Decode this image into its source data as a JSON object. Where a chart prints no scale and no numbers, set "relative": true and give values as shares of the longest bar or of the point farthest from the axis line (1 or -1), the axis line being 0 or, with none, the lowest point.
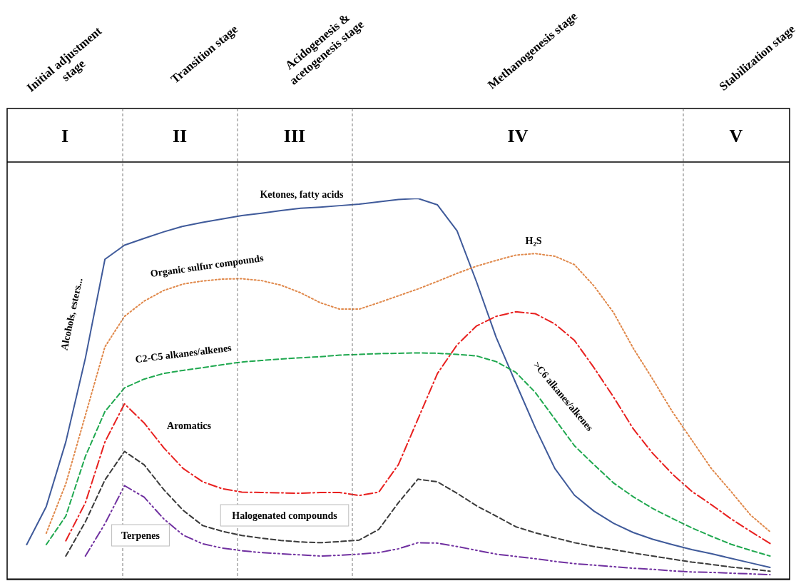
{
  "chart_data": {
    "type": "line",
    "relative": true,
    "grid": false,
    "legend": false,
    "marker": "none",
    "categories": [
      null,
      null,
      null,
      null,
      null,
      null,
      null,
      null,
      null,
      null,
      null,
      null,
      null,
      null,
      null,
      null,
      null,
      null,
      null,
      null,
      null,
      null,
      null,
      null,
      null,
      null,
      null,
      null,
      null,
      null,
      null,
      null,
      null,
      null,
      null,
      null,
      null,
      null,
      null,
      null,
      null
    ],
    "series": [
      {
        "color": "#3f5a9a",
        "line_style": "solid",
        "values": [
          null,
          0.09,
          0.19,
          0.36,
          0.58,
          0.84,
          0.877,
          0.895,
          0.912,
          0.927,
          0.937,
          0.946,
          0.955,
          0.961,
          0.968,
          0.974,
          0.977,
          0.981,
          0.985,
          0.991,
          0.997,
          1,
          0.983,
          0.915,
          0.78,
          0.635,
          0.515,
          0.397,
          0.29,
          0.22,
          0.178,
          0.146,
          0.122,
          0.104,
          0.09,
          0.077,
          0.066,
          0.054,
          0.042,
          0.03,
          null
        ]
      },
      {
        "color": "#e0884a",
        "line_style": "dotted",
        "values": [
          null,
          null,
          0.12,
          0.25,
          0.43,
          0.61,
          0.69,
          0.73,
          0.758,
          0.775,
          0.783,
          0.788,
          0.789,
          0.784,
          0.772,
          0.752,
          0.726,
          0.709,
          0.709,
          0.726,
          0.744,
          0.762,
          0.782,
          0.803,
          0.822,
          0.837,
          0.851,
          0.855,
          0.848,
          0.826,
          0.77,
          0.7,
          0.607,
          0.525,
          0.44,
          0.365,
          0.29,
          0.23,
          0.168,
          0.124,
          null
        ]
      },
      {
        "color": "#1fa84f",
        "line_style": "dashed",
        "values": [
          null,
          null,
          0.09,
          0.165,
          0.322,
          0.44,
          0.502,
          0.525,
          0.54,
          0.548,
          0.555,
          0.563,
          0.57,
          0.574,
          0.578,
          0.581,
          0.584,
          0.588,
          0.59,
          0.592,
          0.593,
          0.594,
          0.593,
          0.59,
          0.586,
          0.571,
          0.543,
          0.49,
          0.42,
          0.35,
          0.3,
          0.252,
          0.216,
          0.185,
          0.159,
          0.134,
          0.112,
          0.091,
          0.075,
          0.06,
          null
        ]
      },
      {
        "color": "#e8201f",
        "line_style": "dashdot",
        "values": [
          null,
          null,
          null,
          0.1,
          0.2,
          0.36,
          0.46,
          0.41,
          0.345,
          0.29,
          0.255,
          0.237,
          0.228,
          0.227,
          0.226,
          0.225,
          0.227,
          0.227,
          0.219,
          0.228,
          0.3,
          0.42,
          0.54,
          0.615,
          0.665,
          0.69,
          0.702,
          0.697,
          0.67,
          0.627,
          0.555,
          0.478,
          0.395,
          0.33,
          0.276,
          0.23,
          0.195,
          0.158,
          0.125,
          0.093,
          null
        ]
      },
      {
        "color": "#3a3a3a",
        "line_style": "dashed",
        "values": [
          null,
          null,
          null,
          0.06,
          0.15,
          0.26,
          0.335,
          0.3,
          0.235,
          0.18,
          0.14,
          0.125,
          0.114,
          0.107,
          0.101,
          0.097,
          0.095,
          0.098,
          0.102,
          0.13,
          0.2,
          0.262,
          0.255,
          0.225,
          0.192,
          0.165,
          0.137,
          0.121,
          0.108,
          0.095,
          0.085,
          0.077,
          0.068,
          0.06,
          0.052,
          0.044,
          0.038,
          0.031,
          0.026,
          0.02,
          null
        ]
      },
      {
        "color": "#7030a0",
        "line_style": "dashdotdot",
        "values": [
          null,
          null,
          null,
          null,
          0.06,
          0.145,
          0.245,
          0.215,
          0.158,
          0.115,
          0.092,
          0.081,
          0.074,
          0.069,
          0.066,
          0.063,
          0.06,
          0.062,
          0.065,
          0.069,
          0.079,
          0.095,
          0.094,
          0.085,
          0.075,
          0.065,
          0.059,
          0.053,
          0.046,
          0.04,
          0.036,
          0.032,
          0.028,
          0.025,
          0.021,
          0.018,
          0.017,
          0.015,
          0.013,
          0.011,
          null
        ]
      }
    ],
    "annotations": [
      "Initial adjustment stage",
      "Transition stage",
      "Acidogenesis & acetogenesis stage",
      "Methanogenesis stage",
      "Stabilization  stage",
      "I",
      "II",
      "III",
      "IV",
      "V",
      "Alcohols, esters...",
      "Ketones, fatty acids",
      "Organic sulfur  compounds",
      "H₂S",
      "C2-C5 alkanes/alkenes",
      "Aromatics",
      ">C6 alkanes/alkenes",
      "Halogenated compounds",
      "Terpenes"
    ]
  }
}
